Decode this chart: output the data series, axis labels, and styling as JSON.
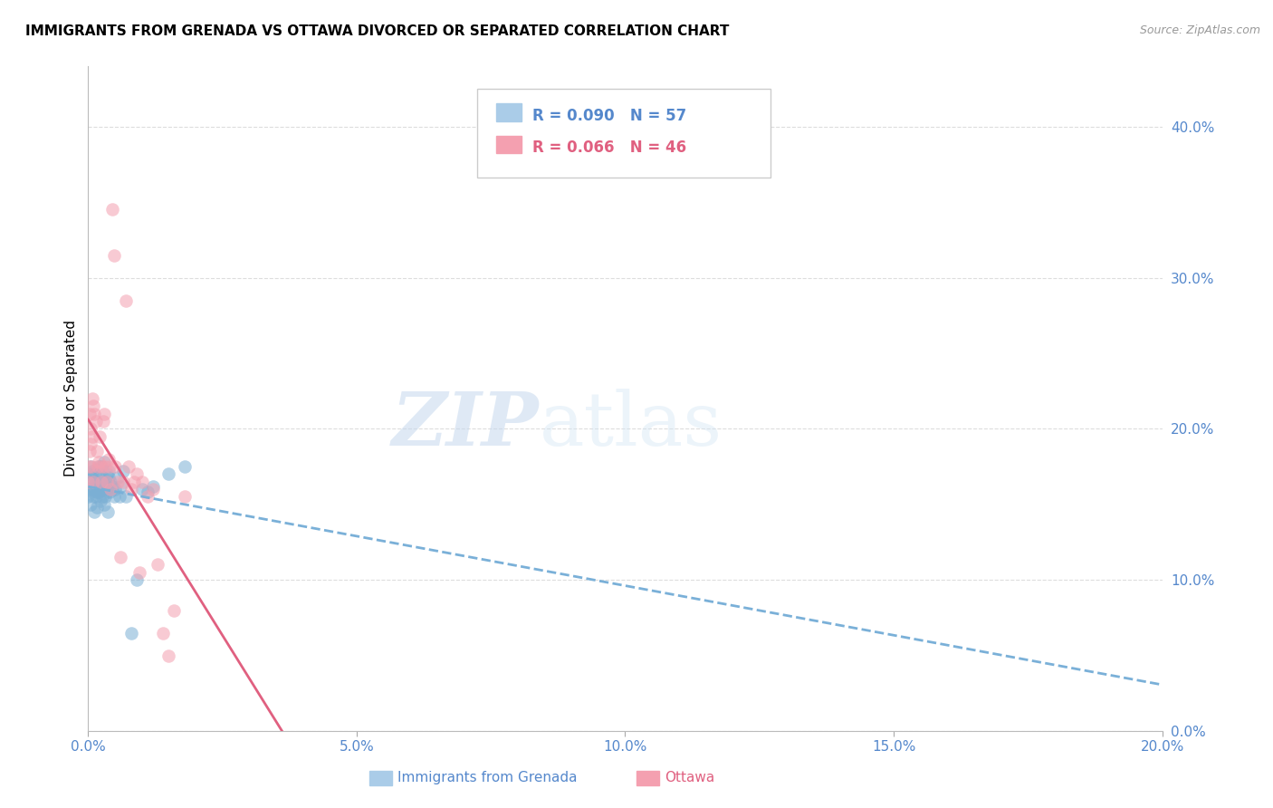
{
  "title": "IMMIGRANTS FROM GRENADA VS OTTAWA DIVORCED OR SEPARATED CORRELATION CHART",
  "source": "Source: ZipAtlas.com",
  "xlabel_bottom": "Immigrants from Grenada",
  "xlabel_bottom2": "Ottawa",
  "ylabel": "Divorced or Separated",
  "watermark_zip": "ZIP",
  "watermark_atlas": "atlas",
  "series1": {
    "label": "Immigrants from Grenada",
    "color": "#7bafd4",
    "R": 0.09,
    "N": 57,
    "points_x": [
      0.0,
      0.0001,
      0.0002,
      0.0003,
      0.0004,
      0.0005,
      0.0006,
      0.0007,
      0.0008,
      0.0009,
      0.001,
      0.0011,
      0.0012,
      0.0013,
      0.0014,
      0.0015,
      0.0016,
      0.0017,
      0.0018,
      0.0019,
      0.002,
      0.0021,
      0.0022,
      0.0023,
      0.0024,
      0.0025,
      0.0026,
      0.0027,
      0.0028,
      0.0029,
      0.003,
      0.0031,
      0.0032,
      0.0033,
      0.0034,
      0.0035,
      0.0036,
      0.0037,
      0.0038,
      0.0039,
      0.004,
      0.0042,
      0.0045,
      0.0048,
      0.005,
      0.0055,
      0.0058,
      0.006,
      0.0065,
      0.007,
      0.008,
      0.009,
      0.01,
      0.011,
      0.012,
      0.015,
      0.018
    ],
    "points_y": [
      0.155,
      0.165,
      0.17,
      0.16,
      0.175,
      0.15,
      0.168,
      0.158,
      0.172,
      0.162,
      0.155,
      0.145,
      0.16,
      0.17,
      0.165,
      0.155,
      0.158,
      0.148,
      0.162,
      0.175,
      0.158,
      0.17,
      0.165,
      0.152,
      0.16,
      0.175,
      0.168,
      0.155,
      0.162,
      0.15,
      0.178,
      0.16,
      0.155,
      0.165,
      0.17,
      0.158,
      0.162,
      0.145,
      0.168,
      0.172,
      0.158,
      0.165,
      0.162,
      0.155,
      0.16,
      0.168,
      0.155,
      0.162,
      0.172,
      0.155,
      0.065,
      0.1,
      0.16,
      0.158,
      0.162,
      0.17,
      0.175
    ]
  },
  "series2": {
    "label": "Ottawa",
    "color": "#f4a0b0",
    "R": 0.066,
    "N": 46,
    "points_x": [
      0.0,
      0.0001,
      0.0002,
      0.0003,
      0.0004,
      0.0005,
      0.0006,
      0.0007,
      0.0008,
      0.0009,
      0.001,
      0.0012,
      0.0014,
      0.0016,
      0.0018,
      0.002,
      0.0022,
      0.0024,
      0.0025,
      0.0028,
      0.003,
      0.0032,
      0.0035,
      0.0038,
      0.004,
      0.0042,
      0.0045,
      0.0048,
      0.005,
      0.0055,
      0.006,
      0.0065,
      0.007,
      0.0075,
      0.008,
      0.0085,
      0.009,
      0.0095,
      0.01,
      0.011,
      0.012,
      0.013,
      0.014,
      0.015,
      0.016,
      0.018
    ],
    "points_y": [
      0.165,
      0.175,
      0.185,
      0.21,
      0.2,
      0.19,
      0.175,
      0.22,
      0.195,
      0.215,
      0.165,
      0.21,
      0.205,
      0.185,
      0.175,
      0.178,
      0.195,
      0.165,
      0.175,
      0.205,
      0.21,
      0.175,
      0.165,
      0.18,
      0.175,
      0.16,
      0.345,
      0.315,
      0.175,
      0.165,
      0.115,
      0.165,
      0.285,
      0.175,
      0.16,
      0.165,
      0.17,
      0.105,
      0.165,
      0.155,
      0.16,
      0.11,
      0.065,
      0.05,
      0.08,
      0.155
    ]
  },
  "xlim": [
    0.0,
    0.2
  ],
  "ylim": [
    0.0,
    0.44
  ],
  "xticks": [
    0.0,
    0.05,
    0.1,
    0.15,
    0.2
  ],
  "xtick_labels": [
    "0.0%",
    "5.0%",
    "10.0%",
    "15.0%",
    "20.0%"
  ],
  "ytick_vals": [
    0.0,
    0.1,
    0.2,
    0.3,
    0.4
  ],
  "ytick_labels": [
    "0.0%",
    "10.0%",
    "20.0%",
    "30.0%",
    "40.0%"
  ],
  "background_color": "#ffffff",
  "grid_color": "#dddddd",
  "title_fontsize": 11,
  "blue_color": "#5588cc",
  "pink_color": "#e06080",
  "line1_color": "#7ab0d8",
  "line2_color": "#e06080"
}
